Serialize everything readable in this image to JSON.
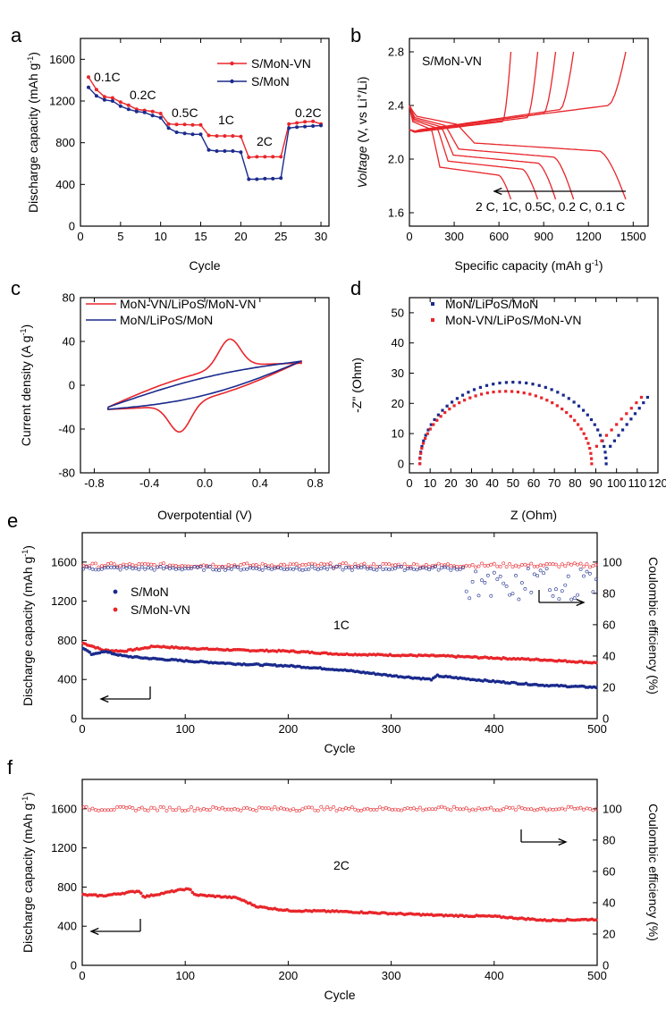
{
  "colors": {
    "red": "#e8262b",
    "blue": "#1a2a8c",
    "axis": "#000000"
  },
  "chart_data": [
    {
      "panel": "a",
      "type": "line",
      "xlabel": "Cycle",
      "ylabel": "Discharge capacity (mAh g-1)",
      "xlim": [
        0,
        31
      ],
      "ylim": [
        0,
        1800
      ],
      "xticks": [
        0,
        5,
        10,
        15,
        20,
        25,
        30
      ],
      "yticks": [
        0,
        400,
        800,
        1200,
        1600
      ],
      "legend": [
        "S/MoN-VN",
        "S/MoN"
      ],
      "annotations": [
        "0.1C",
        "0.2C",
        "0.5C",
        "1C",
        "2C",
        "0.2C"
      ],
      "series": [
        {
          "name": "S/MoN-VN",
          "color": "red",
          "x": [
            1,
            2,
            3,
            4,
            5,
            6,
            7,
            8,
            9,
            10,
            11,
            12,
            13,
            14,
            15,
            16,
            17,
            18,
            19,
            20,
            21,
            22,
            23,
            24,
            25,
            26,
            27,
            28,
            29,
            30
          ],
          "y": [
            1430,
            1310,
            1240,
            1230,
            1190,
            1160,
            1120,
            1110,
            1100,
            1080,
            980,
            975,
            975,
            970,
            970,
            870,
            865,
            865,
            865,
            860,
            660,
            665,
            665,
            665,
            665,
            980,
            990,
            1000,
            1005,
            980
          ]
        },
        {
          "name": "S/MoN",
          "color": "blue",
          "x": [
            1,
            2,
            3,
            4,
            5,
            6,
            7,
            8,
            9,
            10,
            11,
            12,
            13,
            14,
            15,
            16,
            17,
            18,
            19,
            20,
            21,
            22,
            23,
            24,
            25,
            26,
            27,
            28,
            29,
            30
          ],
          "y": [
            1330,
            1250,
            1210,
            1200,
            1150,
            1120,
            1100,
            1090,
            1060,
            1040,
            940,
            900,
            890,
            880,
            880,
            730,
            720,
            720,
            720,
            710,
            450,
            450,
            455,
            455,
            460,
            940,
            950,
            955,
            960,
            965
          ]
        }
      ]
    },
    {
      "panel": "b",
      "type": "line",
      "title": "S/MoN-VN",
      "xlabel": "Specific capacity (mAh g-1)",
      "ylabel": "Voltage (V, vs Li+/Li)",
      "xlim": [
        0,
        1600
      ],
      "ylim": [
        1.5,
        2.9
      ],
      "xticks": [
        0,
        300,
        600,
        900,
        1200,
        1500
      ],
      "yticks": [
        1.6,
        2.0,
        2.4,
        2.8
      ],
      "annotation": "2 C, 1C, 0.5C, 0.2 C, 0.1 C",
      "series": [
        {
          "name": "0.1C",
          "capacity": 1450
        },
        {
          "name": "0.2C",
          "capacity": 1100
        },
        {
          "name": "0.5C",
          "capacity": 980
        },
        {
          "name": "1C",
          "capacity": 860
        },
        {
          "name": "2C",
          "capacity": 680
        }
      ]
    },
    {
      "panel": "c",
      "type": "line",
      "xlabel": "Overpotential (V)",
      "ylabel": "Current density (A g-1)",
      "xlim": [
        -0.9,
        0.9
      ],
      "ylim": [
        -80,
        80
      ],
      "xticks": [
        -0.8,
        -0.4,
        0.0,
        0.4,
        0.8
      ],
      "yticks": [
        -80,
        -40,
        0,
        40,
        80
      ],
      "legend": [
        "MoN-VN/LiPoS/MoN-VN",
        "MoN/LiPoS/MoN"
      ],
      "series": [
        {
          "name": "MoN-VN/LiPoS/MoN-VN",
          "color": "red",
          "peak_current": 50,
          "peak_potential": 0.18
        },
        {
          "name": "MoN/LiPoS/MoN",
          "color": "blue",
          "end_current": 22
        }
      ]
    },
    {
      "panel": "d",
      "type": "scatter",
      "xlabel": "Z (Ohm)",
      "ylabel": "-Z\" (Ohm)",
      "xlim": [
        0,
        120
      ],
      "ylim": [
        -3,
        55
      ],
      "xticks": [
        0,
        10,
        20,
        30,
        40,
        50,
        60,
        70,
        80,
        90,
        100,
        110,
        120
      ],
      "yticks": [
        0,
        10,
        20,
        30,
        40,
        50
      ],
      "legend": [
        "MoN/LiPoS/MoN",
        "MoN-VN/LiPoS/MoN-VN"
      ],
      "series": [
        {
          "name": "MoN/LiPoS/MoN",
          "color": "blue",
          "semicircle_start": 5,
          "semicircle_end": 95,
          "peak": 27,
          "tail_end": [
            115,
            22
          ]
        },
        {
          "name": "MoN-VN/LiPoS/MoN-VN",
          "color": "red",
          "semicircle_start": 5,
          "semicircle_end": 88,
          "peak": 24,
          "tail_end": [
            112,
            22
          ]
        }
      ]
    },
    {
      "panel": "e",
      "type": "scatter",
      "xlabel": "Cycle",
      "ylabel": "Discharge capacity (mAh g-1)",
      "y2label": "Coulombic efficiency (%)",
      "xlim": [
        0,
        500
      ],
      "ylim": [
        0,
        1900
      ],
      "y2lim": [
        0,
        118.75
      ],
      "xticks": [
        0,
        100,
        200,
        300,
        400,
        500
      ],
      "yticks": [
        0,
        400,
        800,
        1200,
        1600
      ],
      "y2ticks": [
        0,
        20,
        40,
        60,
        80,
        100
      ],
      "legend": [
        "S/MoN",
        "S/MoN-VN"
      ],
      "annotation": "1C",
      "series": [
        {
          "name": "S/MoN-VN",
          "color": "red",
          "x": [
            1,
            10,
            20,
            40,
            60,
            70,
            100,
            150,
            200,
            250,
            300,
            350,
            400,
            450,
            500
          ],
          "y": [
            770,
            740,
            700,
            690,
            720,
            740,
            720,
            700,
            690,
            660,
            650,
            640,
            620,
            600,
            570
          ]
        },
        {
          "name": "S/MoN",
          "color": "blue",
          "x": [
            1,
            10,
            20,
            40,
            60,
            100,
            150,
            200,
            250,
            300,
            340,
            345,
            350,
            400,
            450,
            500
          ],
          "y": [
            720,
            650,
            690,
            640,
            620,
            590,
            560,
            540,
            500,
            440,
            400,
            440,
            430,
            380,
            340,
            320
          ]
        },
        {
          "name": "S/MoN-VN CE",
          "color": "red",
          "value": 98
        },
        {
          "name": "S/MoN CE",
          "color": "blue",
          "value": 96,
          "fluctuates_after": 370
        }
      ]
    },
    {
      "panel": "f",
      "type": "scatter",
      "xlabel": "Cycle",
      "ylabel": "Discharge capacity (mAh g-1)",
      "y2label": "Coulombic efficiency (%)",
      "xlim": [
        0,
        500
      ],
      "ylim": [
        0,
        1900
      ],
      "y2lim": [
        0,
        118.75
      ],
      "xticks": [
        0,
        100,
        200,
        300,
        400,
        500
      ],
      "yticks": [
        0,
        400,
        800,
        1200,
        1600
      ],
      "y2ticks": [
        0,
        20,
        40,
        60,
        80,
        100
      ],
      "annotation": "2C",
      "series": [
        {
          "name": "S/MoN-VN",
          "color": "red",
          "x": [
            2,
            20,
            55,
            60,
            100,
            105,
            110,
            150,
            170,
            200,
            250,
            300,
            350,
            400,
            450,
            500
          ],
          "y": [
            720,
            710,
            760,
            700,
            780,
            770,
            720,
            690,
            600,
            560,
            550,
            530,
            510,
            500,
            460,
            470
          ]
        },
        {
          "name": "S/MoN-VN CE",
          "color": "red",
          "value": 100
        }
      ]
    }
  ]
}
